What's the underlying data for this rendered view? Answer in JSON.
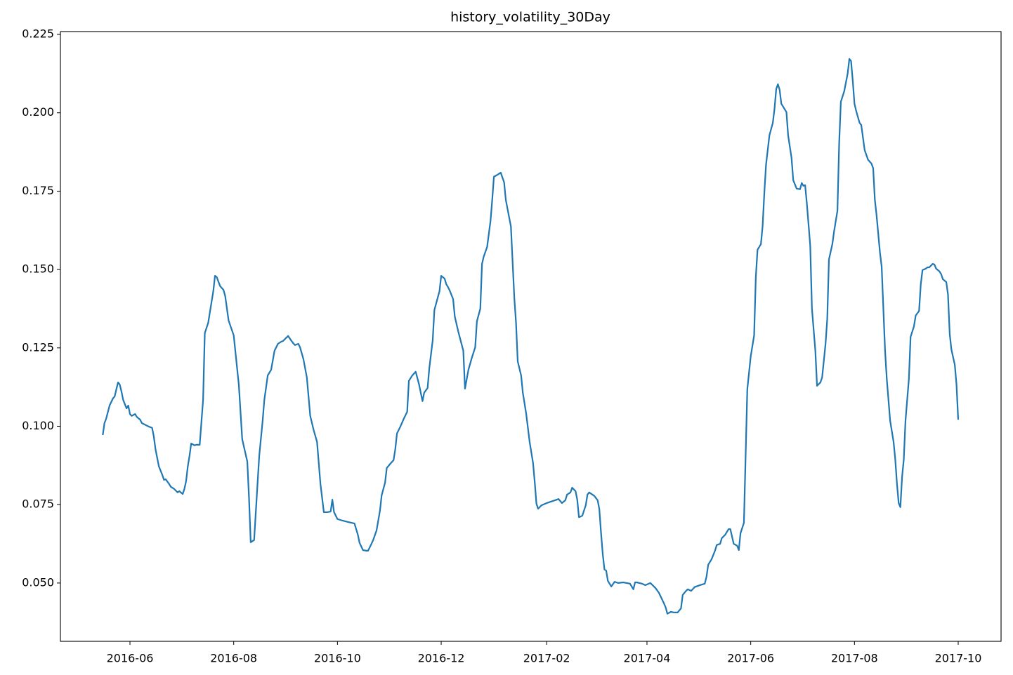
{
  "chart_data": {
    "type": "line",
    "title": "history_volatility_30Day",
    "color": "#1f77b4",
    "xlim": [
      16912.1,
      17465.2
    ],
    "ylim": [
      0.0314,
      0.2259
    ],
    "xticks": [
      {
        "value": 16953,
        "label": "2016-06"
      },
      {
        "value": 17014,
        "label": "2016-08"
      },
      {
        "value": 17075,
        "label": "2016-10"
      },
      {
        "value": 17136,
        "label": "2016-12"
      },
      {
        "value": 17198,
        "label": "2017-02"
      },
      {
        "value": 17257,
        "label": "2017-04"
      },
      {
        "value": 17318,
        "label": "2017-06"
      },
      {
        "value": 17379,
        "label": "2017-08"
      },
      {
        "value": 17440,
        "label": "2017-10"
      }
    ],
    "yticks": [
      {
        "value": 0.05,
        "label": "0.050"
      },
      {
        "value": 0.075,
        "label": "0.075"
      },
      {
        "value": 0.1,
        "label": "0.100"
      },
      {
        "value": 0.125,
        "label": "0.125"
      },
      {
        "value": 0.15,
        "label": "0.150"
      },
      {
        "value": 0.175,
        "label": "0.175"
      },
      {
        "value": 0.2,
        "label": "0.200"
      },
      {
        "value": 0.225,
        "label": "0.225"
      }
    ],
    "x": [
      16937,
      16938,
      16939,
      16941,
      16943,
      16944,
      16945,
      16946,
      16947,
      16948,
      16949,
      16951,
      16952,
      16953,
      16954,
      16956,
      16957,
      16959,
      16960,
      16964,
      16966,
      16967,
      16968,
      16970,
      16972,
      16973,
      16974,
      16976,
      16977,
      16979,
      16981,
      16982,
      16984,
      16985,
      16986,
      16987,
      16988,
      16989,
      16991,
      16992,
      16994,
      16996,
      16997,
      16999,
      17000,
      17002,
      17003,
      17004,
      17006,
      17008,
      17009,
      17011,
      17014,
      17016,
      17017,
      17019,
      17022,
      17023,
      17024,
      17026,
      17028,
      17029,
      17031,
      17032,
      17034,
      17036,
      17038,
      17040,
      17042,
      17043,
      17045,
      17046,
      17048,
      17049,
      17050,
      17052,
      17053,
      17055,
      17057,
      17059,
      17061,
      17063,
      17065,
      17067,
      17069,
      17071,
      17072,
      17073,
      17074,
      17075,
      17078,
      17081,
      17085,
      17087,
      17088,
      17090,
      17092,
      17093,
      17095,
      17096,
      17098,
      17100,
      17101,
      17103,
      17104,
      17106,
      17108,
      17109,
      17110,
      17112,
      17114,
      17116,
      17117,
      17119,
      17121,
      17123,
      17125,
      17126,
      17128,
      17129,
      17131,
      17132,
      17135,
      17136,
      17138,
      17139,
      17140,
      17141,
      17143,
      17144,
      17146,
      17149,
      17150,
      17152,
      17154,
      17156,
      17157,
      17159,
      17160,
      17161,
      17163,
      17165,
      17166,
      17167,
      17169,
      17171,
      17173,
      17174,
      17177,
      17179,
      17180,
      17181,
      17183,
      17184,
      17186,
      17188,
      17190,
      17191,
      17192,
      17193,
      17195,
      17198,
      17203,
      17205,
      17207,
      17209,
      17210,
      17212,
      17213,
      17215,
      17216,
      17217,
      17218,
      17219,
      17221,
      17222,
      17223,
      17226,
      17228,
      17229,
      17230,
      17231,
      17232,
      17233,
      17234,
      17236,
      17238,
      17240,
      17243,
      17247,
      17249,
      17250,
      17251,
      17254,
      17256,
      17259,
      17262,
      17264,
      17267,
      17268,
      17269,
      17271,
      17273,
      17275,
      17277,
      17278,
      17280,
      17281,
      17283,
      17285,
      17286,
      17288,
      17291,
      17292,
      17293,
      17295,
      17297,
      17298,
      17300,
      17301,
      17303,
      17305,
      17306,
      17308,
      17310,
      17311,
      17312,
      17314,
      17315,
      17316,
      17318,
      17320,
      17321,
      17322,
      17324,
      17325,
      17326,
      17327,
      17329,
      17331,
      17332,
      17333,
      17334,
      17335,
      17336,
      17337,
      17339,
      17340,
      17342,
      17343,
      17345,
      17347,
      17348,
      17349,
      17350,
      17351,
      17352,
      17353,
      17354,
      17356,
      17357,
      17359,
      17360,
      17362,
      17363,
      17364,
      17366,
      17367,
      17369,
      17370,
      17371,
      17373,
      17375,
      17376,
      17377,
      17378,
      17379,
      17380,
      17382,
      17383,
      17385,
      17387,
      17389,
      17390,
      17391,
      17392,
      17394,
      17395,
      17397,
      17398,
      17400,
      17402,
      17403,
      17404,
      17405,
      17406,
      17407,
      17408,
      17409,
      17411,
      17412,
      17414,
      17415,
      17417,
      17418,
      17419,
      17421,
      17422,
      17423,
      17425,
      17426,
      17427,
      17429,
      17430,
      17431,
      17433,
      17434,
      17435,
      17436,
      17438,
      17439,
      17440
    ],
    "values": [
      0.0972,
      0.101,
      0.1024,
      0.1066,
      0.1089,
      0.1095,
      0.1118,
      0.114,
      0.1133,
      0.1111,
      0.1084,
      0.1057,
      0.1066,
      0.1039,
      0.1033,
      0.1039,
      0.103,
      0.1021,
      0.101,
      0.0999,
      0.0995,
      0.0968,
      0.0927,
      0.0872,
      0.0845,
      0.0829,
      0.0831,
      0.0816,
      0.0807,
      0.08,
      0.0789,
      0.0793,
      0.0784,
      0.08,
      0.0825,
      0.0872,
      0.0905,
      0.0945,
      0.0939,
      0.0941,
      0.0941,
      0.1084,
      0.1297,
      0.133,
      0.1364,
      0.1431,
      0.148,
      0.1476,
      0.1447,
      0.1435,
      0.1415,
      0.1337,
      0.129,
      0.1185,
      0.1133,
      0.0959,
      0.0887,
      0.0771,
      0.063,
      0.0637,
      0.0816,
      0.0905,
      0.1017,
      0.1084,
      0.1162,
      0.118,
      0.1241,
      0.1263,
      0.127,
      0.1272,
      0.1283,
      0.1288,
      0.1272,
      0.1265,
      0.1259,
      0.1263,
      0.1252,
      0.1214,
      0.1156,
      0.1033,
      0.0988,
      0.095,
      0.0816,
      0.0726,
      0.0726,
      0.0728,
      0.0766,
      0.0726,
      0.0715,
      0.0704,
      0.0699,
      0.0695,
      0.069,
      0.0654,
      0.0628,
      0.0605,
      0.0603,
      0.0603,
      0.0625,
      0.0637,
      0.0668,
      0.0731,
      0.078,
      0.082,
      0.0867,
      0.088,
      0.0892,
      0.0927,
      0.0977,
      0.0999,
      0.1024,
      0.1046,
      0.1145,
      0.1162,
      0.1174,
      0.1133,
      0.108,
      0.1107,
      0.1122,
      0.1185,
      0.1274,
      0.1371,
      0.1431,
      0.148,
      0.1471,
      0.1453,
      0.1444,
      0.1433,
      0.1406,
      0.135,
      0.1303,
      0.1241,
      0.112,
      0.118,
      0.1218,
      0.1252,
      0.1335,
      0.1375,
      0.1518,
      0.1541,
      0.1572,
      0.1655,
      0.1722,
      0.1796,
      0.1802,
      0.1809,
      0.1778,
      0.1722,
      0.1637,
      0.1409,
      0.133,
      0.1207,
      0.1162,
      0.1107,
      0.1039,
      0.095,
      0.0883,
      0.0822,
      0.0753,
      0.0737,
      0.0748,
      0.0755,
      0.0764,
      0.0768,
      0.0755,
      0.0764,
      0.0782,
      0.0789,
      0.0804,
      0.0793,
      0.0766,
      0.071,
      0.0712,
      0.0715,
      0.0748,
      0.0782,
      0.0789,
      0.0778,
      0.0764,
      0.0735,
      0.0659,
      0.0592,
      0.0543,
      0.054,
      0.0507,
      0.0489,
      0.0504,
      0.05,
      0.0502,
      0.0498,
      0.048,
      0.0502,
      0.0502,
      0.0498,
      0.0493,
      0.05,
      0.0484,
      0.0469,
      0.0435,
      0.0422,
      0.0402,
      0.0408,
      0.0406,
      0.0406,
      0.0419,
      0.0462,
      0.0475,
      0.048,
      0.0475,
      0.0487,
      0.0489,
      0.0493,
      0.0498,
      0.052,
      0.0558,
      0.0576,
      0.0603,
      0.0621,
      0.0625,
      0.0643,
      0.0654,
      0.0672,
      0.0672,
      0.0625,
      0.0619,
      0.0605,
      0.0659,
      0.0692,
      0.0905,
      0.1118,
      0.1223,
      0.129,
      0.1476,
      0.1563,
      0.1581,
      0.1639,
      0.1744,
      0.1834,
      0.1928,
      0.1968,
      0.2013,
      0.2076,
      0.2091,
      0.2073,
      0.2029,
      0.202,
      0.2002,
      0.1928,
      0.1856,
      0.1785,
      0.1758,
      0.1756,
      0.1776,
      0.1767,
      0.1769,
      0.1711,
      0.1644,
      0.1576,
      0.1375,
      0.1241,
      0.1129,
      0.114,
      0.1156,
      0.1263,
      0.1342,
      0.1532,
      0.1581,
      0.1621,
      0.1688,
      0.1901,
      0.2035,
      0.2069,
      0.2125,
      0.2172,
      0.2165,
      0.2102,
      0.2029,
      0.2006,
      0.1968,
      0.1961,
      0.1881,
      0.185,
      0.1838,
      0.1823,
      0.1722,
      0.1673,
      0.1554,
      0.1509,
      0.1241,
      0.1151,
      0.1017,
      0.095,
      0.0894,
      0.0816,
      0.0755,
      0.0742,
      0.0838,
      0.0894,
      0.1017,
      0.1151,
      0.1285,
      0.1319,
      0.1353,
      0.1368,
      0.1453,
      0.1498,
      0.1503,
      0.1507,
      0.1507,
      0.1518,
      0.1516,
      0.1503,
      0.1494,
      0.1485,
      0.1469,
      0.146,
      0.142,
      0.1295,
      0.1245,
      0.1196,
      0.1133,
      0.1021
    ]
  }
}
